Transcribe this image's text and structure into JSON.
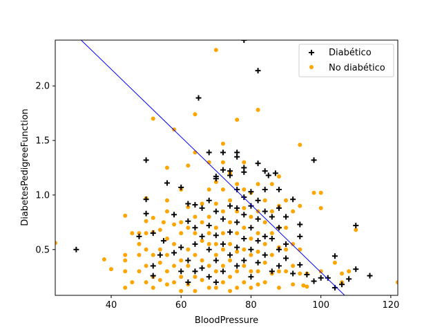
{
  "chart_data": {
    "type": "scatter",
    "title": "",
    "xlabel": "BloodPressure",
    "ylabel": "DiabetesPedigreeFunction",
    "xlim": [
      24,
      122
    ],
    "ylim": [
      0.08,
      2.42
    ],
    "xticks": [
      40,
      60,
      80,
      100,
      120
    ],
    "yticks": [
      0.5,
      1.0,
      1.5,
      2.0
    ],
    "xtick_labels": [
      "40",
      "60",
      "80",
      "100",
      "120"
    ],
    "ytick_labels": [
      "0.5",
      "1.0",
      "1.5",
      "2.0"
    ],
    "grid": false,
    "legend": {
      "position": "top-right"
    },
    "decision_line": {
      "color": "#0000ff",
      "points": [
        [
          31.4,
          2.42
        ],
        [
          106.8,
          0.08
        ]
      ]
    },
    "series": [
      {
        "name": "Diabético",
        "marker": "plus",
        "color": "#000000",
        "points": [
          [
            30,
            0.5
          ],
          [
            50,
            1.32
          ],
          [
            50,
            0.96
          ],
          [
            50,
            0.83
          ],
          [
            48,
            0.62
          ],
          [
            52,
            0.65
          ],
          [
            52,
            0.35
          ],
          [
            52,
            0.26
          ],
          [
            54,
            0.45
          ],
          [
            55,
            0.58
          ],
          [
            56,
            1.11
          ],
          [
            58,
            0.82
          ],
          [
            58,
            0.47
          ],
          [
            60,
            0.52
          ],
          [
            60,
            1.07
          ],
          [
            60,
            0.3
          ],
          [
            62,
            0.92
          ],
          [
            62,
            0.76
          ],
          [
            62,
            0.4
          ],
          [
            62,
            0.2
          ],
          [
            64,
            0.91
          ],
          [
            64,
            0.7
          ],
          [
            64,
            0.55
          ],
          [
            64,
            0.3
          ],
          [
            65,
            1.89
          ],
          [
            66,
            0.88
          ],
          [
            66,
            0.62
          ],
          [
            66,
            0.33
          ],
          [
            68,
            1.39
          ],
          [
            68,
            0.95
          ],
          [
            68,
            0.72
          ],
          [
            68,
            0.5
          ],
          [
            68,
            0.25
          ],
          [
            70,
            1.17
          ],
          [
            70,
            1.15
          ],
          [
            70,
            0.85
          ],
          [
            70,
            0.63
          ],
          [
            70,
            0.4
          ],
          [
            70,
            0.2
          ],
          [
            72,
            1.39
          ],
          [
            72,
            1.23
          ],
          [
            72,
            0.78
          ],
          [
            72,
            0.55
          ],
          [
            72,
            0.3
          ],
          [
            74,
            1.22
          ],
          [
            74,
            1.18
          ],
          [
            74,
            0.9
          ],
          [
            74,
            0.66
          ],
          [
            74,
            0.45
          ],
          [
            76,
            1.39
          ],
          [
            76,
            1.35
          ],
          [
            76,
            1.05
          ],
          [
            76,
            0.88
          ],
          [
            76,
            0.75
          ],
          [
            76,
            0.52
          ],
          [
            76,
            0.35
          ],
          [
            78,
            2.42
          ],
          [
            78,
            1.25
          ],
          [
            78,
            1.21
          ],
          [
            78,
            0.98
          ],
          [
            78,
            0.82
          ],
          [
            78,
            0.6
          ],
          [
            78,
            0.4
          ],
          [
            80,
            1.03
          ],
          [
            80,
            0.9
          ],
          [
            80,
            0.7
          ],
          [
            80,
            0.5
          ],
          [
            80,
            0.25
          ],
          [
            82,
            2.14
          ],
          [
            82,
            1.29
          ],
          [
            82,
            0.95
          ],
          [
            82,
            0.78
          ],
          [
            82,
            0.58
          ],
          [
            82,
            0.38
          ],
          [
            84,
            1.22
          ],
          [
            84,
            1.05
          ],
          [
            84,
            0.85
          ],
          [
            84,
            0.62
          ],
          [
            84,
            0.45
          ],
          [
            85,
            1.18
          ],
          [
            86,
            0.8
          ],
          [
            86,
            0.6
          ],
          [
            86,
            0.3
          ],
          [
            87,
            1.2
          ],
          [
            88,
            1.05
          ],
          [
            88,
            0.88
          ],
          [
            88,
            0.7
          ],
          [
            88,
            0.5
          ],
          [
            88,
            0.35
          ],
          [
            90,
            0.8
          ],
          [
            90,
            0.55
          ],
          [
            90,
            0.42
          ],
          [
            92,
            0.96
          ],
          [
            92,
            0.28
          ],
          [
            94,
            0.73
          ],
          [
            94,
            0.62
          ],
          [
            94,
            0.36
          ],
          [
            96,
            0.27
          ],
          [
            98,
            1.32
          ],
          [
            98,
            0.21
          ],
          [
            100,
            0.24
          ],
          [
            102,
            0.24
          ],
          [
            104,
            0.44
          ],
          [
            104,
            0.15
          ],
          [
            106,
            0.18
          ],
          [
            108,
            0.23
          ],
          [
            110,
            0.72
          ],
          [
            110,
            0.32
          ],
          [
            114,
            0.26
          ]
        ]
      },
      {
        "name": "No diabético",
        "marker": "circle",
        "color": "#ffa500",
        "points": [
          [
            24,
            0.56
          ],
          [
            38,
            0.41
          ],
          [
            40,
            0.32
          ],
          [
            44,
            0.81
          ],
          [
            44,
            0.45
          ],
          [
            44,
            0.4
          ],
          [
            44,
            0.3
          ],
          [
            44,
            0.15
          ],
          [
            46,
            0.65
          ],
          [
            46,
            0.2
          ],
          [
            48,
            0.65
          ],
          [
            48,
            0.55
          ],
          [
            48,
            0.45
          ],
          [
            48,
            0.3
          ],
          [
            50,
            0.97
          ],
          [
            50,
            0.76
          ],
          [
            50,
            0.65
          ],
          [
            50,
            0.5
          ],
          [
            50,
            0.35
          ],
          [
            50,
            0.2
          ],
          [
            52,
            1.7
          ],
          [
            52,
            0.79
          ],
          [
            52,
            0.66
          ],
          [
            52,
            0.45
          ],
          [
            52,
            0.25
          ],
          [
            52,
            0.15
          ],
          [
            54,
            0.68
          ],
          [
            54,
            0.5
          ],
          [
            54,
            0.38
          ],
          [
            54,
            0.22
          ],
          [
            55,
            0.75
          ],
          [
            56,
            1.25
          ],
          [
            56,
            0.95
          ],
          [
            56,
            0.85
          ],
          [
            56,
            0.6
          ],
          [
            56,
            0.45
          ],
          [
            56,
            0.3
          ],
          [
            56,
            0.18
          ],
          [
            58,
            1.6
          ],
          [
            58,
            0.73
          ],
          [
            58,
            0.55
          ],
          [
            58,
            0.35
          ],
          [
            58,
            0.2
          ],
          [
            60,
            1.05
          ],
          [
            60,
            0.75
          ],
          [
            60,
            0.65
          ],
          [
            60,
            0.4
          ],
          [
            60,
            0.25
          ],
          [
            60,
            0.12
          ],
          [
            62,
            1.27
          ],
          [
            62,
            0.89
          ],
          [
            62,
            0.7
          ],
          [
            62,
            0.5
          ],
          [
            62,
            0.35
          ],
          [
            62,
            0.18
          ],
          [
            64,
            1.74
          ],
          [
            64,
            1.39
          ],
          [
            64,
            0.8
          ],
          [
            64,
            0.65
          ],
          [
            64,
            0.45
          ],
          [
            64,
            0.25
          ],
          [
            64,
            0.12
          ],
          [
            66,
            0.92
          ],
          [
            66,
            0.75
          ],
          [
            66,
            0.58
          ],
          [
            66,
            0.4
          ],
          [
            66,
            0.22
          ],
          [
            68,
            1.3
          ],
          [
            68,
            1.05
          ],
          [
            68,
            0.8
          ],
          [
            68,
            0.65
          ],
          [
            68,
            0.55
          ],
          [
            68,
            0.35
          ],
          [
            68,
            0.15
          ],
          [
            70,
            2.33
          ],
          [
            70,
            1.12
          ],
          [
            70,
            0.92
          ],
          [
            70,
            0.7
          ],
          [
            70,
            0.55
          ],
          [
            70,
            0.45
          ],
          [
            70,
            0.3
          ],
          [
            70,
            0.15
          ],
          [
            72,
            1.47
          ],
          [
            72,
            1.3
          ],
          [
            72,
            1.05
          ],
          [
            72,
            0.85
          ],
          [
            72,
            0.65
          ],
          [
            72,
            0.5
          ],
          [
            72,
            0.35
          ],
          [
            72,
            0.2
          ],
          [
            74,
            1.2
          ],
          [
            74,
            0.95
          ],
          [
            74,
            0.75
          ],
          [
            74,
            0.55
          ],
          [
            74,
            0.4
          ],
          [
            74,
            0.25
          ],
          [
            74,
            0.12
          ],
          [
            76,
            1.69
          ],
          [
            76,
            1.1
          ],
          [
            76,
            0.85
          ],
          [
            76,
            0.65
          ],
          [
            76,
            0.48
          ],
          [
            76,
            0.3
          ],
          [
            76,
            0.15
          ],
          [
            78,
            1.3
          ],
          [
            78,
            1.05
          ],
          [
            78,
            0.88
          ],
          [
            78,
            0.7
          ],
          [
            78,
            0.5
          ],
          [
            78,
            0.35
          ],
          [
            78,
            0.2
          ],
          [
            80,
            1.02
          ],
          [
            80,
            0.8
          ],
          [
            80,
            0.6
          ],
          [
            80,
            0.45
          ],
          [
            80,
            0.3
          ],
          [
            80,
            0.15
          ],
          [
            82,
            1.78
          ],
          [
            82,
            1.1
          ],
          [
            82,
            0.85
          ],
          [
            82,
            0.65
          ],
          [
            82,
            0.48
          ],
          [
            82,
            0.3
          ],
          [
            82,
            0.18
          ],
          [
            84,
            0.95
          ],
          [
            84,
            0.75
          ],
          [
            84,
            0.55
          ],
          [
            84,
            0.38
          ],
          [
            84,
            0.2
          ],
          [
            86,
            1.1
          ],
          [
            86,
            0.85
          ],
          [
            86,
            0.65
          ],
          [
            86,
            0.45
          ],
          [
            86,
            0.28
          ],
          [
            88,
            1.17
          ],
          [
            88,
            0.9
          ],
          [
            88,
            0.7
          ],
          [
            88,
            0.52
          ],
          [
            88,
            0.3
          ],
          [
            88,
            0.15
          ],
          [
            90,
            0.95
          ],
          [
            90,
            0.7
          ],
          [
            90,
            0.5
          ],
          [
            90,
            0.3
          ],
          [
            92,
            0.85
          ],
          [
            92,
            0.55
          ],
          [
            92,
            0.35
          ],
          [
            92,
            0.18
          ],
          [
            94,
            1.46
          ],
          [
            94,
            0.9
          ],
          [
            94,
            0.5
          ],
          [
            94,
            0.28
          ],
          [
            95,
            0.17
          ],
          [
            96,
            0.16
          ],
          [
            96,
            0.28
          ],
          [
            98,
            1.02
          ],
          [
            100,
            1.02
          ],
          [
            100,
            0.88
          ],
          [
            100,
            0.3
          ],
          [
            104,
            0.38
          ],
          [
            106,
            0.28
          ],
          [
            106,
            0.2
          ],
          [
            108,
            0.3
          ],
          [
            110,
            0.68
          ],
          [
            122,
            0.2
          ]
        ]
      }
    ]
  }
}
